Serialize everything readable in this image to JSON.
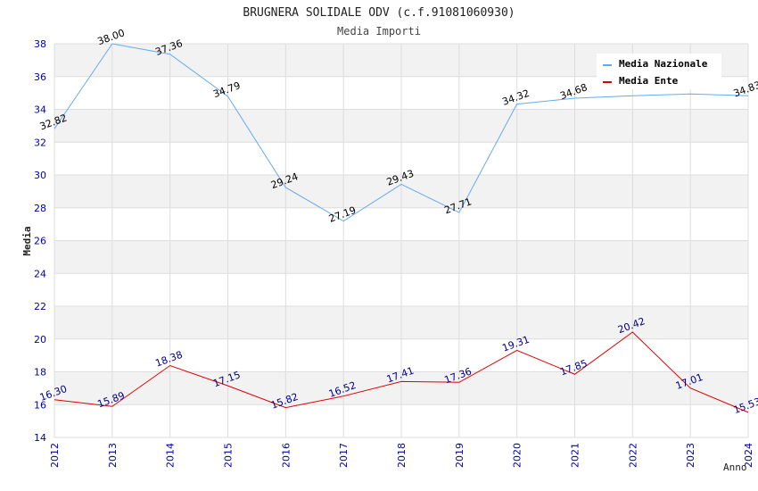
{
  "chart_data": {
    "type": "line",
    "title": "BRUGNERA SOLIDALE ODV (c.f.91081060930)",
    "subtitle": "Media Importi",
    "xlabel": "Anno",
    "ylabel": "Media",
    "ylim": [
      14,
      38
    ],
    "yticks": [
      14,
      16,
      18,
      20,
      22,
      24,
      26,
      28,
      30,
      32,
      34,
      36,
      38
    ],
    "categories": [
      "2012",
      "2013",
      "2014",
      "2015",
      "2016",
      "2017",
      "2018",
      "2019",
      "2020",
      "2021",
      "2022",
      "2023",
      "2024"
    ],
    "legend_position": "top-right",
    "series": [
      {
        "name": "Media Nazionale",
        "color": "#66aaee",
        "label_color": "#000000",
        "values": [
          32.82,
          38.0,
          37.36,
          34.79,
          29.24,
          27.19,
          29.43,
          27.71,
          34.32,
          34.68,
          34.83,
          34.94,
          34.83
        ],
        "labels": [
          "32.82",
          "38.00",
          "37.36",
          "34.79",
          "29.24",
          "27.19",
          "29.43",
          "27.71",
          "34.32",
          "34.68",
          "",
          "",
          "34.83"
        ]
      },
      {
        "name": "Media Ente",
        "color": "#dd0000",
        "label_color": "#00008b",
        "values": [
          16.3,
          15.89,
          18.38,
          17.15,
          15.82,
          16.52,
          17.41,
          17.36,
          19.31,
          17.85,
          20.42,
          17.01,
          15.53
        ],
        "labels": [
          "16.30",
          "15.89",
          "18.38",
          "17.15",
          "15.82",
          "16.52",
          "17.41",
          "17.36",
          "19.31",
          "17.85",
          "20.42",
          "17.01",
          "15.53"
        ]
      }
    ]
  }
}
